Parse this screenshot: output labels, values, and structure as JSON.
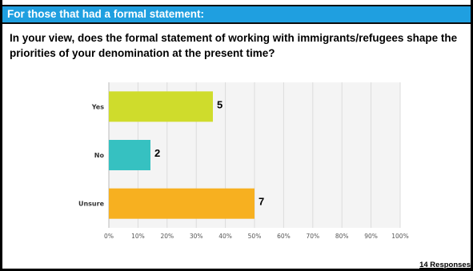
{
  "header": {
    "title": "For those that had a formal statement:"
  },
  "question": "In your view, does the formal statement of working with immigrants/refugees shape the priorities of your denomination at the present time?",
  "footer": {
    "responses": "14 Responses"
  },
  "colors": {
    "banner": "#1f9fe0",
    "yes": "#cfdc2c",
    "no": "#36c1c1",
    "unsure": "#f7b020"
  },
  "chart_data": {
    "type": "bar",
    "orientation": "horizontal",
    "categories": [
      "Yes",
      "No",
      "Unsure"
    ],
    "values": [
      5,
      2,
      7
    ],
    "percentages": [
      35.7,
      14.3,
      50.0
    ],
    "bar_colors": [
      "#cfdc2c",
      "#36c1c1",
      "#f7b020"
    ],
    "x_ticks": [
      "0%",
      "10%",
      "20%",
      "30%",
      "40%",
      "50%",
      "60%",
      "70%",
      "80%",
      "90%",
      "100%"
    ],
    "xlim": [
      0,
      100
    ],
    "grid": true,
    "legend": "none"
  }
}
